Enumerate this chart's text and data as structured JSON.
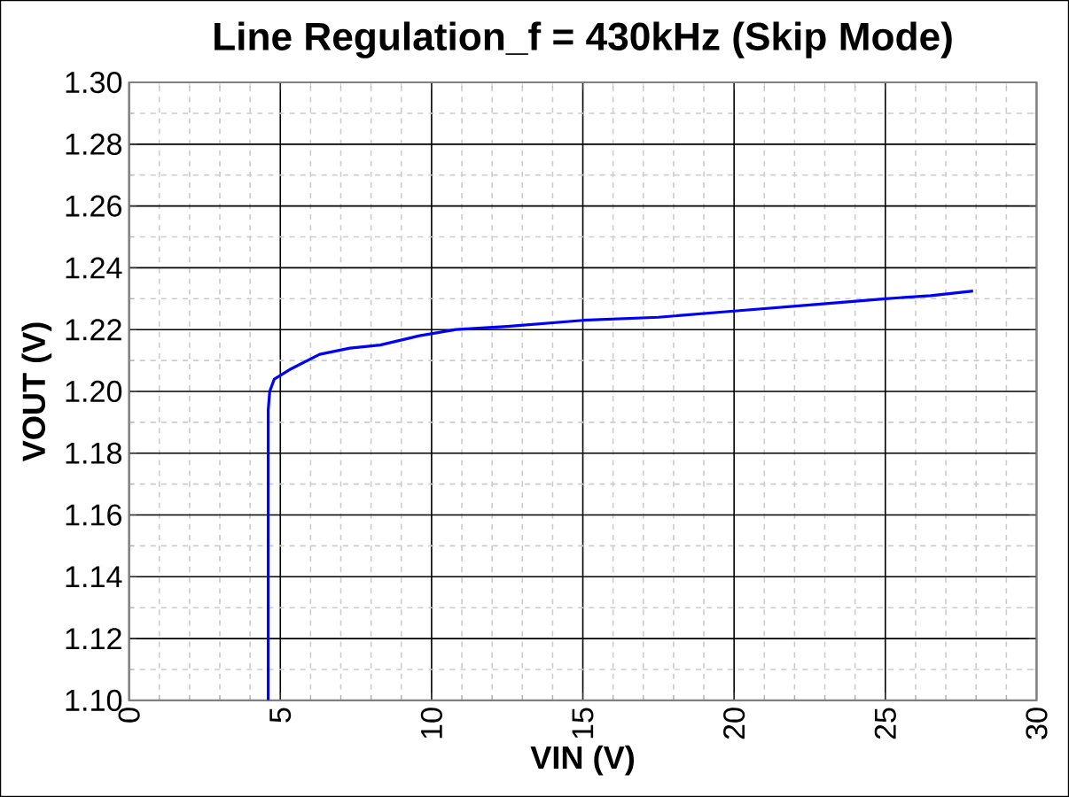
{
  "chart_data": {
    "type": "line",
    "title": "Line Regulation_f = 430kHz (Skip Mode)",
    "xlabel": "VIN (V)",
    "ylabel": "VOUT (V)",
    "series": [
      {
        "color": "#0000ff",
        "x": [
          4.6,
          4.6,
          4.65,
          4.8,
          5.3,
          6.3,
          7.3,
          8.3,
          9.6,
          10.8,
          12.5,
          15,
          17.5,
          20,
          22.5,
          25,
          26.5,
          27.9
        ],
        "values": [
          1.1,
          1.194,
          1.2,
          1.204,
          1.207,
          1.212,
          1.214,
          1.215,
          1.218,
          1.22,
          1.221,
          1.223,
          1.224,
          1.226,
          1.228,
          1.23,
          1.231,
          1.2325
        ]
      }
    ],
    "xlim": [
      0,
      30
    ],
    "ylim": [
      1.1,
      1.3
    ],
    "xticks": [
      0,
      5,
      10,
      15,
      20,
      25,
      30
    ],
    "yticks": [
      {
        "value": 1.1,
        "label": "1.10"
      },
      {
        "value": 1.12,
        "label": "1.12"
      },
      {
        "value": 1.14,
        "label": "1.14"
      },
      {
        "value": 1.16,
        "label": "1.16"
      },
      {
        "value": 1.18,
        "label": "1.18"
      },
      {
        "value": 1.2,
        "label": "1.20"
      },
      {
        "value": 1.22,
        "label": "1.22"
      },
      {
        "value": 1.24,
        "label": "1.24"
      },
      {
        "value": 1.26,
        "label": "1.26"
      },
      {
        "value": 1.28,
        "label": "1.28"
      },
      {
        "value": 1.3,
        "label": "1.30"
      }
    ],
    "grid": true,
    "marker": "none",
    "line_style": "solid"
  }
}
